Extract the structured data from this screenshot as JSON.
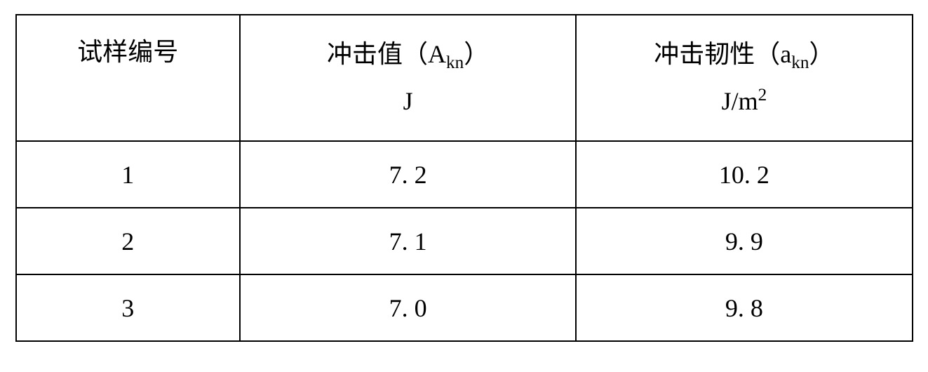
{
  "table": {
    "type": "table",
    "border_color": "#000000",
    "border_width": 2,
    "background_color": "#ffffff",
    "text_color": "#000000",
    "font_family": "SimSun",
    "header_fontsize": 36,
    "data_fontsize": 36,
    "columns": [
      {
        "id": "sample_no",
        "label_line1": "试样编号",
        "label_line2": "",
        "width_pct": 25
      },
      {
        "id": "impact_value",
        "label_line1_pre": "冲击值（A",
        "label_line1_sub": "kn",
        "label_line1_post": "）",
        "unit": "J",
        "width_pct": 37.5
      },
      {
        "id": "impact_toughness",
        "label_line1_pre": "冲击韧性（a",
        "label_line1_sub": "kn",
        "label_line1_post": "）",
        "unit_pre": "J/m",
        "unit_sup": "2",
        "width_pct": 37.5
      }
    ],
    "rows": [
      {
        "sample_no": "1",
        "impact_value": "7. 2",
        "impact_toughness": "10. 2"
      },
      {
        "sample_no": "2",
        "impact_value": "7. 1",
        "impact_toughness": "9. 9"
      },
      {
        "sample_no": "3",
        "impact_value": "7. 0",
        "impact_toughness": "9. 8"
      }
    ]
  }
}
